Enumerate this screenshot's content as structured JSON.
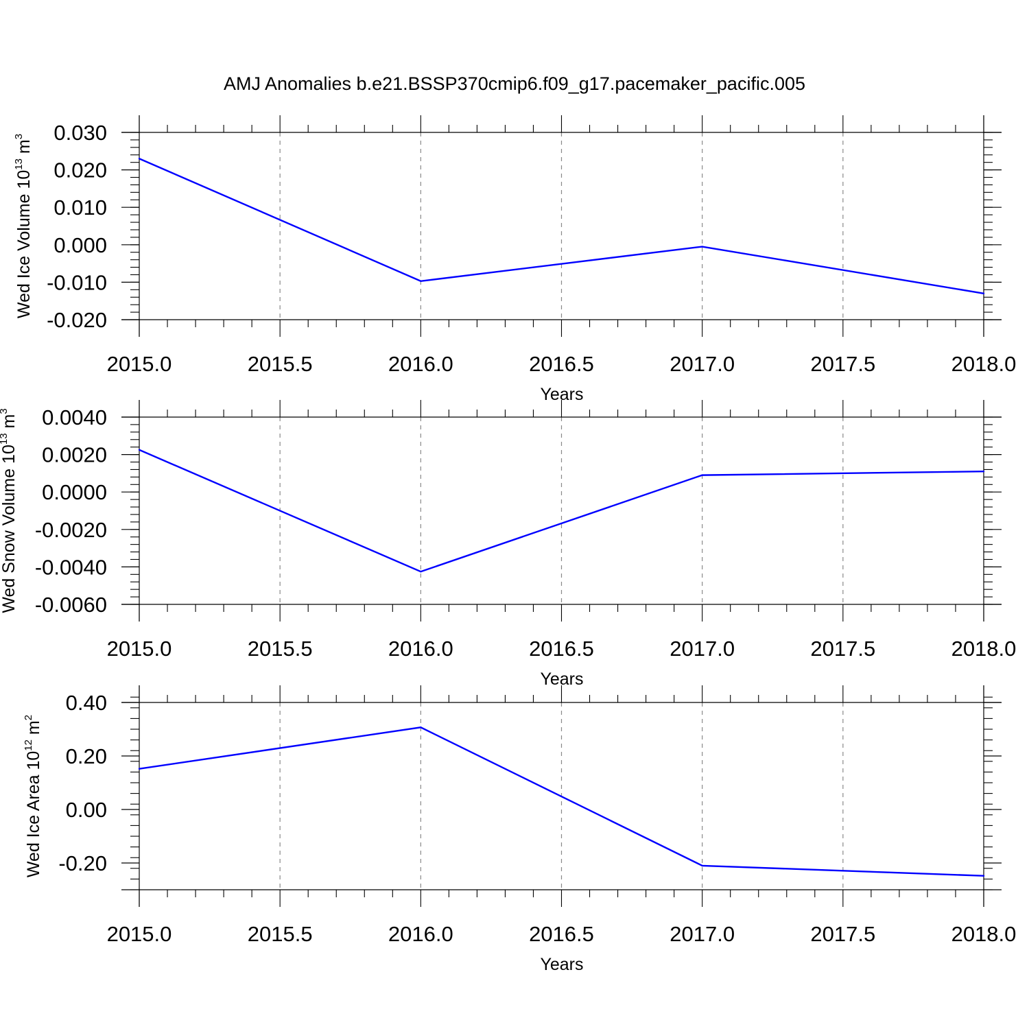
{
  "title": "AMJ Anomalies b.e21.BSSP370cmip6.f09_g17.pacemaker_pacific.005",
  "line_color": "#0000ff",
  "chart_data": [
    {
      "type": "line",
      "xlabel": "Years",
      "ylabel": {
        "text": "Wed Ice Volume 10",
        "sup": "13",
        "unit": "m",
        "unit_sup": "3"
      },
      "xlim": [
        2015.0,
        2018.0
      ],
      "ylim": [
        -0.02,
        0.03
      ],
      "x_ticks": [
        "2015.0",
        "2015.5",
        "2016.0",
        "2016.5",
        "2017.0",
        "2017.5",
        "2018.0"
      ],
      "y_ticks": [
        "0.030",
        "0.020",
        "0.010",
        "0.000",
        "-0.010",
        "-0.020"
      ],
      "y_tick_values": [
        0.03,
        0.02,
        0.01,
        0.0,
        -0.01,
        -0.02
      ],
      "y_minor_step": 0.002,
      "grid": "vertical dashed at major x ticks",
      "series": [
        {
          "x": [
            2015,
            2016,
            2017,
            2018
          ],
          "values": [
            0.023,
            -0.0097,
            -0.0005,
            -0.013
          ]
        }
      ]
    },
    {
      "type": "line",
      "xlabel": "Years",
      "ylabel": {
        "text": "Wed Snow Volume 10",
        "sup": "13",
        "unit": "m",
        "unit_sup": "3"
      },
      "xlim": [
        2015.0,
        2018.0
      ],
      "ylim": [
        -0.006,
        0.004
      ],
      "x_ticks": [
        "2015.0",
        "2015.5",
        "2016.0",
        "2016.5",
        "2017.0",
        "2017.5",
        "2018.0"
      ],
      "y_ticks": [
        "0.0040",
        "0.0020",
        "0.0000",
        "-0.0020",
        "-0.0040",
        "-0.0060"
      ],
      "y_tick_values": [
        0.004,
        0.002,
        0.0,
        -0.002,
        -0.004,
        -0.006
      ],
      "y_minor_step": 0.0004,
      "grid": "vertical dashed at major x ticks",
      "series": [
        {
          "x": [
            2015,
            2016,
            2017,
            2018
          ],
          "values": [
            0.00225,
            -0.00425,
            0.0009,
            0.0011
          ]
        }
      ]
    },
    {
      "type": "line",
      "xlabel": "Years",
      "ylabel": {
        "text": "Wed Ice Area 10",
        "sup": "12",
        "unit": "m",
        "unit_sup": "2"
      },
      "xlim": [
        2015.0,
        2018.0
      ],
      "ylim": [
        -0.3,
        0.4
      ],
      "x_ticks": [
        "2015.0",
        "2015.5",
        "2016.0",
        "2016.5",
        "2017.0",
        "2017.5",
        "2018.0"
      ],
      "y_ticks": [
        "0.40",
        "0.20",
        "0.00",
        "-0.20"
      ],
      "y_tick_values": [
        0.4,
        0.2,
        0.0,
        -0.2
      ],
      "y_minor_step": 0.04,
      "grid": "vertical dashed at major x ticks",
      "series": [
        {
          "x": [
            2015,
            2016,
            2017,
            2018
          ],
          "values": [
            0.152,
            0.307,
            -0.21,
            -0.248
          ]
        }
      ]
    }
  ]
}
